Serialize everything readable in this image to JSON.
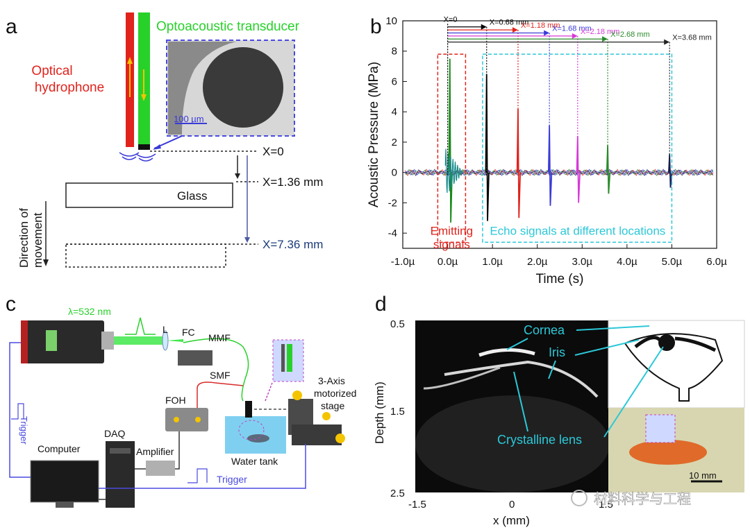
{
  "panels": {
    "a": "a",
    "b": "b",
    "c": "c",
    "d": "d"
  },
  "panel_a": {
    "title": "Optoacoustic transducer",
    "hydrophone_line1": "Optical",
    "hydrophone_line2": "hydrophone",
    "scale_bar": "100 µm",
    "x0": "X=0",
    "x1": "X=1.36 mm",
    "x2": "X=7.36 mm",
    "glass": "Glass",
    "direction_line1": "Direction of",
    "direction_line2": "movement",
    "colors": {
      "hydrophone": "#e0231c",
      "transducer": "#27d12a",
      "frame": "#4a4ae0"
    }
  },
  "chart_data": {
    "type": "line",
    "xlabel": "Time (s)",
    "ylabel": "Acoustic Pressure (MPa)",
    "xlim": [
      -1.0,
      6.0
    ],
    "ylim": [
      -5,
      10
    ],
    "x_ticks": [
      "-1.0µ",
      "0.0µ",
      "1.0µ",
      "2.0µ",
      "3.0µ",
      "4.0µ",
      "5.0µ",
      "6.0µ"
    ],
    "y_ticks": [
      "-4",
      "-2",
      "0",
      "2",
      "4",
      "6",
      "8",
      "10"
    ],
    "annotations": [
      {
        "label": "X=0",
        "peak_time_us": 0.0,
        "color": "#000000"
      },
      {
        "label": "X=0.68 mm",
        "peak_time_us": 0.87,
        "color": "#000000"
      },
      {
        "label": "X=1.18 mm",
        "peak_time_us": 1.57,
        "color": "#e0231c"
      },
      {
        "label": "X=1.68 mm",
        "peak_time_us": 2.27,
        "color": "#3a3ad8"
      },
      {
        "label": "X=2.18 mm",
        "peak_time_us": 2.9,
        "color": "#d63ad6"
      },
      {
        "label": "X=2.68 mm",
        "peak_time_us": 3.57,
        "color": "#2a8a2a"
      },
      {
        "label": "X=3.68 mm",
        "peak_time_us": 4.95,
        "color": "#222222"
      }
    ],
    "echo_peaks": [
      {
        "t": 0.05,
        "max": 7.5,
        "min": -3.3,
        "color": "#1a8a1a"
      },
      {
        "t": 0.87,
        "max": 6.5,
        "min": -3.2,
        "color": "#000000"
      },
      {
        "t": 1.57,
        "max": 4.2,
        "min": -3.0,
        "color": "#e0231c"
      },
      {
        "t": 2.27,
        "max": 3.1,
        "min": -2.2,
        "color": "#3a3ad8"
      },
      {
        "t": 2.9,
        "max": 2.4,
        "min": -2.0,
        "color": "#d63ad6"
      },
      {
        "t": 3.57,
        "max": 1.8,
        "min": -1.4,
        "color": "#2a8a2a"
      },
      {
        "t": 4.95,
        "max": 1.2,
        "min": -1.0,
        "color": "#1a1a5a"
      }
    ],
    "box_emitting": "Emitting\nsignals",
    "box_echo": "Echo  signals at different locations"
  },
  "panel_c": {
    "wavelength": "λ=532 nm",
    "L": "L",
    "FC": "FC",
    "MMF": "MMF",
    "SMF": "SMF",
    "FOH": "FOH",
    "stage_line1": "3-Axis",
    "stage_line2": "motorized",
    "stage_line3": "stage",
    "water_tank": "Water tank",
    "computer": "Computer",
    "daq": "DAQ",
    "amplifier": "Amplifier",
    "trigger_left": "Trigger",
    "trigger_bottom": "Trigger"
  },
  "panel_d": {
    "ylabel": "Depth (mm)",
    "xlabel": "x (mm)",
    "y_ticks": [
      "0.5",
      "1.5",
      "2.5"
    ],
    "x_ticks": [
      "-1.5",
      "0",
      "1.5"
    ],
    "cornea": "Cornea",
    "iris": "Iris",
    "lens": "Crystalline lens",
    "scale": "10 mm"
  },
  "watermark": "材料科学与工程"
}
